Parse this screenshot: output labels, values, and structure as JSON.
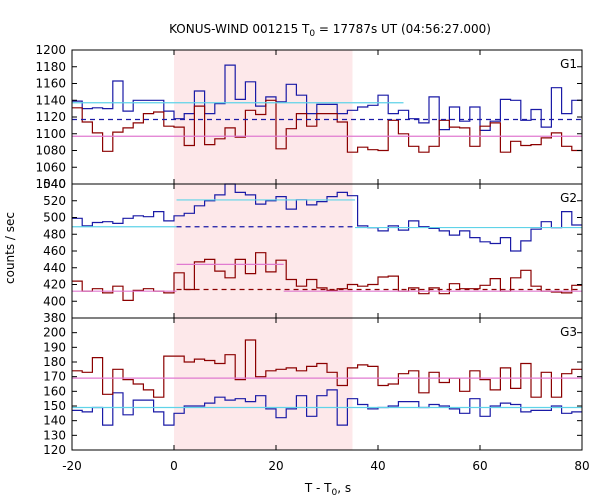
{
  "chart_data": {
    "type": "line",
    "title": "KONUS-WIND 001215 T",
    "title_sub": "0",
    "title_rest": " = 17787s UT (04:56:27.000)",
    "xlabel": "T - T",
    "xlabel_sub": "0",
    "xlabel_rest": ", s",
    "ylabel": "counts / sec",
    "xlim": [
      -20,
      80
    ],
    "xticks": [
      -20,
      0,
      20,
      40,
      60,
      80
    ],
    "grid": false,
    "colors": {
      "blue": "#1a1aa6",
      "red": "#8b0000",
      "cyan": "#5fd3e8",
      "pink": "#e07ad0",
      "shade": "#fde8ea"
    },
    "shade_interval": [
      0,
      35
    ],
    "panels": [
      {
        "label": "G1",
        "ylim": [
          1040,
          1200
        ],
        "yticks": [
          1040,
          1060,
          1080,
          1100,
          1120,
          1140,
          1160,
          1180,
          1200
        ],
        "series": [
          {
            "color": "blue",
            "x0": -20,
            "dx": 2,
            "values": [
              1139,
              1130,
              1131,
              1130,
              1163,
              1127,
              1140,
              1140,
              1140,
              1127,
              1118,
              1124,
              1151,
              1124,
              1136,
              1182,
              1141,
              1162,
              1133,
              1144,
              1138,
              1159,
              1146,
              1124,
              1135,
              1135,
              1124,
              1128,
              1132,
              1134,
              1146,
              1124,
              1128,
              1118,
              1113,
              1144,
              1105,
              1132,
              1115,
              1132,
              1104,
              1115,
              1141,
              1140,
              1116,
              1129,
              1108,
              1155,
              1124,
              1140
            ]
          },
          {
            "color": "red",
            "x0": -20,
            "dx": 2,
            "values": [
              1131,
              1114,
              1101,
              1079,
              1102,
              1107,
              1113,
              1124,
              1126,
              1109,
              1108,
              1086,
              1133,
              1087,
              1094,
              1107,
              1096,
              1128,
              1123,
              1140,
              1082,
              1106,
              1124,
              1109,
              1124,
              1124,
              1114,
              1078,
              1084,
              1081,
              1080,
              1116,
              1100,
              1085,
              1078,
              1085,
              1116,
              1108,
              1107,
              1085,
              1109,
              1113,
              1078,
              1091,
              1086,
              1087,
              1095,
              1101,
              1085,
              1080
            ]
          }
        ],
        "fits": [
          {
            "color": "cyan",
            "style": "solid",
            "segments": [
              [
                -20,
                1137,
                45,
                1137
              ]
            ]
          },
          {
            "color": "blue",
            "style": "dashed",
            "segments": [
              [
                -20,
                1117,
                80,
                1117
              ]
            ]
          },
          {
            "color": "pink",
            "style": "solid",
            "segments": [
              [
                -20,
                1097,
                80,
                1097
              ]
            ]
          }
        ]
      },
      {
        "label": "G2",
        "ylim": [
          380,
          540
        ],
        "yticks": [
          380,
          400,
          420,
          440,
          460,
          480,
          500,
          520,
          540
        ],
        "series": [
          {
            "color": "blue",
            "x0": -20,
            "dx": 2,
            "values": [
              499,
              490,
              494,
              495,
              493,
              499,
              502,
              501,
              507,
              496,
              502,
              505,
              514,
              520,
              527,
              540,
              530,
              527,
              516,
              520,
              525,
              510,
              521,
              515,
              519,
              525,
              530,
              526,
              490,
              488,
              484,
              490,
              485,
              496,
              489,
              487,
              484,
              479,
              484,
              476,
              471,
              469,
              476,
              460,
              472,
              486,
              495,
              488,
              507,
              491
            ]
          },
          {
            "color": "red",
            "x0": -20,
            "dx": 2,
            "values": [
              424,
              412,
              415,
              410,
              418,
              401,
              413,
              415,
              412,
              410,
              434,
              414,
              447,
              450,
              436,
              428,
              450,
              433,
              458,
              435,
              449,
              426,
              418,
              426,
              416,
              413,
              415,
              420,
              418,
              420,
              429,
              430,
              412,
              416,
              409,
              416,
              409,
              421,
              415,
              415,
              419,
              427,
              412,
              428,
              437,
              418,
              412,
              411,
              410,
              419
            ]
          }
        ],
        "fits": [
          {
            "color": "cyan",
            "style": "solid",
            "segments": [
              [
                -20,
                489,
                0.5,
                489
              ],
              [
                0.5,
                521,
                35.5,
                521
              ],
              [
                35.5,
                488,
                80,
                488
              ]
            ]
          },
          {
            "color": "blue",
            "style": "dashed",
            "segments": [
              [
                0.5,
                489,
                35,
                489
              ]
            ]
          },
          {
            "color": "pink",
            "style": "solid",
            "segments": [
              [
                -20,
                412,
                0.5,
                412
              ],
              [
                0.5,
                444,
                21.5,
                444
              ],
              [
                21.5,
                412,
                80,
                412
              ]
            ]
          },
          {
            "color": "red",
            "style": "dashed",
            "segments": [
              [
                0.5,
                414,
                80,
                414
              ]
            ]
          }
        ]
      },
      {
        "label": "G3",
        "ylim": [
          120,
          210
        ],
        "yticks": [
          120,
          130,
          140,
          150,
          160,
          170,
          180,
          190,
          200
        ],
        "series": [
          {
            "color": "blue",
            "x0": -20,
            "dx": 2,
            "values": [
              147,
              146,
              149,
              137,
              159,
              144,
              154,
              154,
              146,
              137,
              145,
              150,
              150,
              152,
              156,
              154,
              155,
              153,
              157,
              148,
              142,
              148,
              157,
              143,
              157,
              161,
              137,
              155,
              151,
              148,
              149,
              150,
              153,
              153,
              149,
              151,
              150,
              148,
              145,
              155,
              143,
              150,
              152,
              151,
              146,
              147,
              147,
              150,
              145,
              146
            ]
          },
          {
            "color": "red",
            "x0": -20,
            "dx": 2,
            "values": [
              174,
              173,
              183,
              158,
              175,
              168,
              165,
              161,
              156,
              184,
              184,
              180,
              182,
              181,
              179,
              185,
              168,
              195,
              170,
              174,
              175,
              176,
              174,
              177,
              179,
              173,
              164,
              176,
              178,
              177,
              164,
              165,
              172,
              174,
              159,
              173,
              166,
              169,
              160,
              174,
              168,
              161,
              176,
              162,
              179,
              156,
              173,
              156,
              172,
              175
            ]
          }
        ],
        "fits": [
          {
            "color": "cyan",
            "style": "solid",
            "segments": [
              [
                -20,
                149,
                80,
                149
              ]
            ]
          },
          {
            "color": "pink",
            "style": "solid",
            "segments": [
              [
                -20,
                169,
                80,
                169
              ]
            ]
          }
        ]
      }
    ]
  }
}
